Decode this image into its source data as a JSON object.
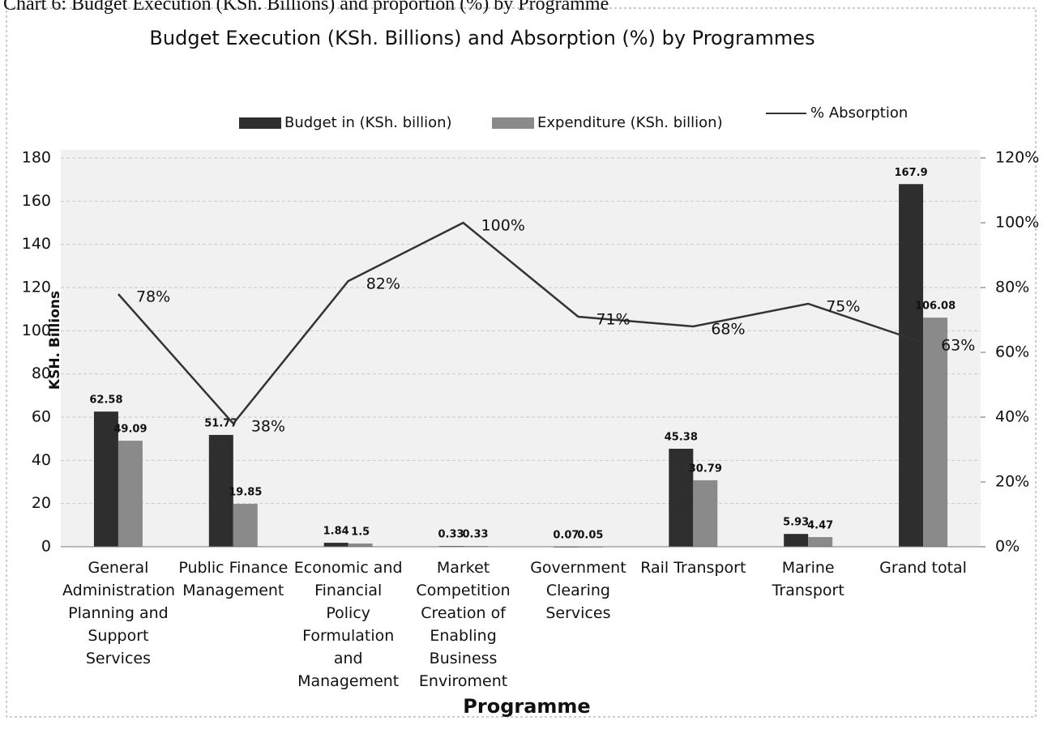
{
  "caption": "Chart 6: Budget Execution (KSh. Billions) and proportion (%) by Programme",
  "chart_data": {
    "type": "bar",
    "title": "Budget Execution (KSh. Billions) and Absorption (%) by Programmes",
    "x_label": "Programme",
    "y_label": "KSH. Billions",
    "categories": [
      "General Administration Planning and Support Services",
      "Public Finance Management",
      "Economic and Financial Policy Formulation and Management",
      "Market Competition Creation of Enabling Business Enviroment",
      "Government Clearing Services",
      "Rail Transport",
      "Marine Transport",
      "Grand total"
    ],
    "series": [
      {
        "name": "Budget in (KSh. billion)",
        "color": "#2e2e2e",
        "values": [
          62.58,
          51.77,
          1.84,
          0.33,
          0.07,
          45.38,
          5.93,
          167.9
        ]
      },
      {
        "name": "Expenditure (KSh. billion)",
        "color": "#8a8a8a",
        "values": [
          49.09,
          19.85,
          1.5,
          0.33,
          0.05,
          30.79,
          4.47,
          106.08
        ]
      },
      {
        "name": "% Absorption",
        "type": "line",
        "axis": "y2",
        "color": "#333333",
        "values": [
          78,
          38,
          82,
          100,
          71,
          68,
          75,
          63
        ],
        "value_labels": [
          "78%",
          "38%",
          "82%",
          "100%",
          "71%",
          "68%",
          "75%",
          "63%"
        ]
      }
    ],
    "ylim": [
      0,
      180
    ],
    "yticks": [
      0,
      20,
      40,
      60,
      80,
      100,
      120,
      140,
      160,
      180
    ],
    "y2lim": [
      0,
      120
    ],
    "y2ticks": [
      {
        "value": 0,
        "label": "0%"
      },
      {
        "value": 20,
        "label": "20%"
      },
      {
        "value": 40,
        "label": "40%"
      },
      {
        "value": 60,
        "label": "60%"
      },
      {
        "value": 80,
        "label": "80%"
      },
      {
        "value": 100,
        "label": "100%"
      },
      {
        "value": 120,
        "label": "120%"
      }
    ],
    "grid": true,
    "legend": "top"
  }
}
